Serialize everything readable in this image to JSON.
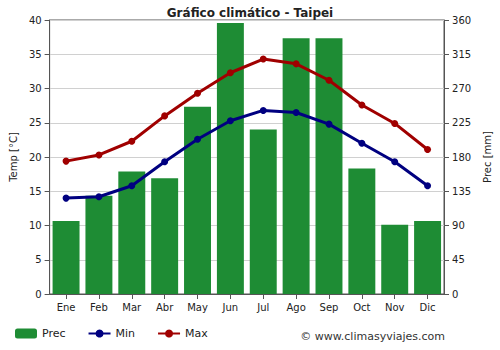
{
  "chart_data": {
    "type": "bar",
    "title": "Gráfico climático - Taipei",
    "y_label": "Temp [°C]",
    "y2_label": "Prec [mm]",
    "categories": [
      "Ene",
      "Feb",
      "Mar",
      "Abr",
      "May",
      "Jun",
      "Jul",
      "Ago",
      "Sep",
      "Oct",
      "Nov",
      "Dic"
    ],
    "series": [
      {
        "name": "Prec",
        "type": "bar",
        "axis": "y2",
        "color": "#1e8c34",
        "values": [
          96,
          129,
          161,
          152,
          246,
          356,
          216,
          336,
          336,
          165,
          91,
          96
        ]
      },
      {
        "name": "Min",
        "type": "line",
        "color": "#000080",
        "marker": "circle",
        "values": [
          14,
          14.2,
          15.8,
          19.3,
          22.6,
          25.3,
          26.8,
          26.5,
          24.8,
          22,
          19.3,
          15.8
        ]
      },
      {
        "name": "Max",
        "type": "line",
        "color": "#a00000",
        "marker": "circle",
        "values": [
          19.4,
          20.3,
          22.3,
          26,
          29.3,
          32.3,
          34.3,
          33.6,
          31.2,
          27.6,
          24.9,
          21.1
        ]
      }
    ],
    "ylim": [
      0,
      40
    ],
    "yticks": [
      0,
      5,
      10,
      15,
      20,
      25,
      30,
      35,
      40
    ],
    "y2lim": [
      0,
      360
    ],
    "y2ticks": [
      0,
      45,
      90,
      135,
      180,
      225,
      270,
      315,
      360
    ],
    "grid": true,
    "legend": "bottom",
    "annotations": [
      "© www.climasyviajes.com"
    ]
  }
}
